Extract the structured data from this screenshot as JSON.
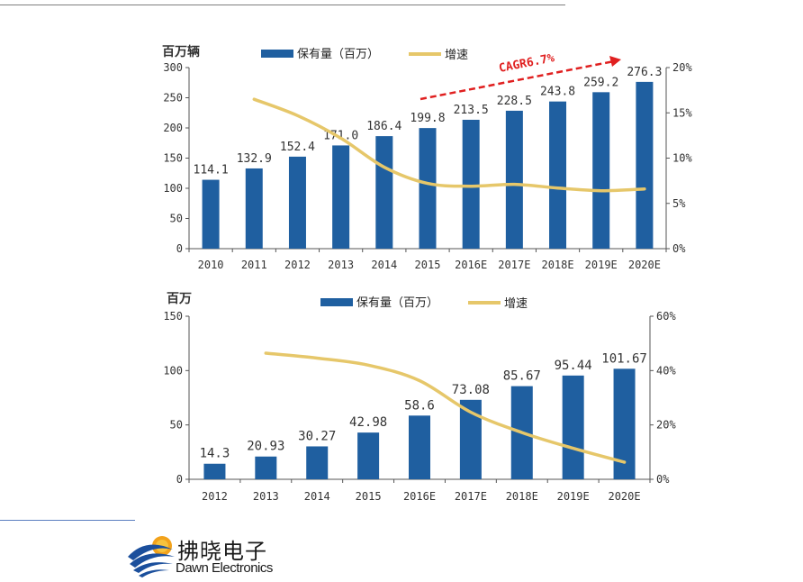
{
  "chart_data": [
    {
      "type": "bar",
      "title": "",
      "ylabel": "百万辆",
      "ylim": [
        0,
        300
      ],
      "y2lim": [
        0,
        20
      ],
      "yticks": [
        "0",
        "50",
        "100",
        "150",
        "200",
        "250",
        "300"
      ],
      "y2ticks": [
        "0%",
        "5%",
        "10%",
        "15%",
        "20%"
      ],
      "categories": [
        "2010",
        "2011",
        "2012",
        "2013",
        "2014",
        "2015",
        "2016E",
        "2017E",
        "2018E",
        "2019E",
        "2020E"
      ],
      "series": [
        {
          "name": "保有量（百万）",
          "type": "bar",
          "color": "#1f5fa0",
          "values": [
            114.1,
            132.9,
            152.4,
            171.0,
            186.4,
            199.8,
            213.5,
            228.5,
            243.8,
            259.2,
            276.3
          ]
        },
        {
          "name": "增速",
          "type": "line",
          "axis": "right",
          "color": "#e6c76a",
          "values": [
            null,
            16.5,
            14.7,
            12.2,
            9.0,
            7.2,
            6.9,
            7.1,
            6.7,
            6.4,
            6.6
          ]
        }
      ],
      "data_labels": [
        "114.1",
        "132.9",
        "152.4",
        "171.0",
        "186.4",
        "199.8",
        "213.5",
        "228.5",
        "243.8",
        "259.2",
        "276.3"
      ],
      "annotation": "CAGR6.7%",
      "legend": "top"
    },
    {
      "type": "bar",
      "title": "",
      "ylabel": "百万",
      "ylim": [
        0,
        150
      ],
      "y2lim": [
        0,
        60
      ],
      "yticks": [
        "0",
        "50",
        "100",
        "150"
      ],
      "y2ticks": [
        "0%",
        "20%",
        "40%",
        "60%"
      ],
      "categories": [
        "2012",
        "2013",
        "2014",
        "2015",
        "2016E",
        "2017E",
        "2018E",
        "2019E",
        "2020E"
      ],
      "series": [
        {
          "name": "保有量（百万）",
          "type": "bar",
          "color": "#1f5fa0",
          "values": [
            14.3,
            20.93,
            30.27,
            42.98,
            58.6,
            73.08,
            85.67,
            95.44,
            101.67
          ]
        },
        {
          "name": "增速",
          "type": "line",
          "axis": "right",
          "color": "#e6c76a",
          "values": [
            null,
            46.4,
            44.6,
            42.0,
            36.3,
            24.7,
            17.2,
            11.4,
            6.3
          ]
        }
      ],
      "data_labels": [
        "14.3",
        "20.93",
        "30.27",
        "42.98",
        "58.6",
        "73.08",
        "85.67",
        "95.44",
        "101.67"
      ],
      "legend": "top"
    }
  ],
  "logo": {
    "cn": "拂晓电子",
    "en": "Dawn Electronics"
  }
}
